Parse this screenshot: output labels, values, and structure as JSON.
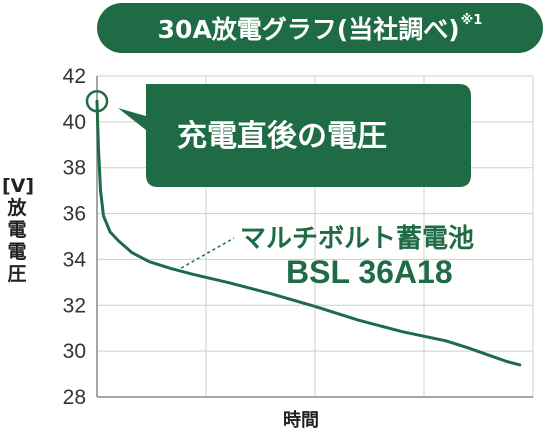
{
  "chart_data": {
    "type": "line",
    "title": "30A放電グラフ(当社調べ)",
    "title_note": "※1",
    "xlabel": "時間",
    "ylabel_unit": "[V]",
    "ylabel": "放電電圧",
    "ylim": [
      28,
      42
    ],
    "yticks": [
      "28",
      "30",
      "32",
      "34",
      "36",
      "38",
      "40",
      "42"
    ],
    "grid": true,
    "x_range": [
      0,
      100
    ],
    "series": [
      {
        "name_line1": "マルチボルト蓄電池",
        "name_line2": "BSL 36A18",
        "color": "#1e6b45",
        "x": [
          0,
          0.3,
          0.8,
          1.5,
          3,
          5,
          8,
          12,
          17,
          22,
          30,
          40,
          50,
          55,
          60,
          70,
          80,
          85,
          88,
          91,
          94,
          97
        ],
        "y": [
          40.9,
          39.0,
          37.0,
          35.9,
          35.2,
          34.8,
          34.3,
          33.9,
          33.6,
          33.35,
          33.0,
          32.5,
          31.95,
          31.65,
          31.35,
          30.85,
          30.45,
          30.15,
          29.95,
          29.75,
          29.55,
          29.4
        ]
      }
    ],
    "annotation": {
      "text": "充電直後の電圧",
      "point": {
        "x": 0,
        "y": 40.9
      }
    }
  },
  "colors": {
    "accent": "#1e6b45",
    "grid": "#cfcfcf",
    "axis": "#888888"
  }
}
